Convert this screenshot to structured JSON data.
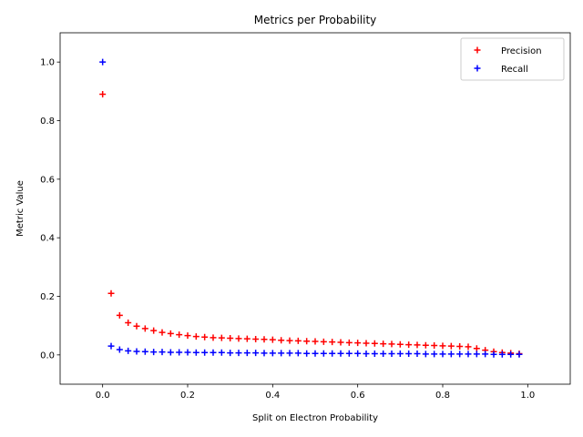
{
  "chart_data": {
    "type": "scatter",
    "title": "Metrics per Probability",
    "xlabel": "Split on Electron Probability",
    "ylabel": "Metric Value",
    "xlim": [
      -0.1,
      1.1
    ],
    "ylim": [
      -0.1,
      1.1
    ],
    "xticks": [
      0.0,
      0.2,
      0.4,
      0.6,
      0.8,
      1.0
    ],
    "xtick_labels": [
      "0.0",
      "0.2",
      "0.4",
      "0.6",
      "0.8",
      "1.0"
    ],
    "yticks": [
      0.0,
      0.2,
      0.4,
      0.6,
      0.8,
      1.0
    ],
    "ytick_labels": [
      "0.0",
      "0.2",
      "0.4",
      "0.6",
      "0.8",
      "1.0"
    ],
    "grid": false,
    "legend_position": "top-right",
    "marker": "+",
    "x": [
      0.0,
      0.02,
      0.04,
      0.06,
      0.08,
      0.1,
      0.12,
      0.14,
      0.16,
      0.18,
      0.2,
      0.22,
      0.24,
      0.26,
      0.28,
      0.3,
      0.32,
      0.34,
      0.36,
      0.38,
      0.4,
      0.42,
      0.44,
      0.46,
      0.48,
      0.5,
      0.52,
      0.54,
      0.56,
      0.58,
      0.6,
      0.62,
      0.64,
      0.66,
      0.68,
      0.7,
      0.72,
      0.74,
      0.76,
      0.78,
      0.8,
      0.82,
      0.84,
      0.86,
      0.88,
      0.9,
      0.92,
      0.94,
      0.96,
      0.98
    ],
    "series": [
      {
        "name": "Precision",
        "color": "#ff0000",
        "values": [
          0.89,
          0.21,
          0.135,
          0.11,
          0.098,
          0.09,
          0.083,
          0.077,
          0.073,
          0.069,
          0.066,
          0.063,
          0.061,
          0.059,
          0.058,
          0.057,
          0.056,
          0.055,
          0.054,
          0.053,
          0.052,
          0.05,
          0.049,
          0.048,
          0.047,
          0.046,
          0.045,
          0.044,
          0.043,
          0.042,
          0.041,
          0.04,
          0.039,
          0.038,
          0.037,
          0.036,
          0.035,
          0.034,
          0.033,
          0.032,
          0.031,
          0.03,
          0.029,
          0.028,
          0.022,
          0.016,
          0.011,
          0.008,
          0.006,
          0.004
        ]
      },
      {
        "name": "Recall",
        "color": "#0000ff",
        "values": [
          1.0,
          0.03,
          0.018,
          0.014,
          0.012,
          0.011,
          0.01,
          0.01,
          0.009,
          0.009,
          0.009,
          0.008,
          0.008,
          0.008,
          0.008,
          0.007,
          0.007,
          0.007,
          0.007,
          0.006,
          0.006,
          0.006,
          0.006,
          0.006,
          0.005,
          0.005,
          0.005,
          0.005,
          0.005,
          0.005,
          0.005,
          0.004,
          0.004,
          0.004,
          0.004,
          0.004,
          0.004,
          0.004,
          0.003,
          0.003,
          0.003,
          0.003,
          0.003,
          0.003,
          0.003,
          0.003,
          0.002,
          0.002,
          0.002,
          0.002
        ]
      }
    ]
  }
}
